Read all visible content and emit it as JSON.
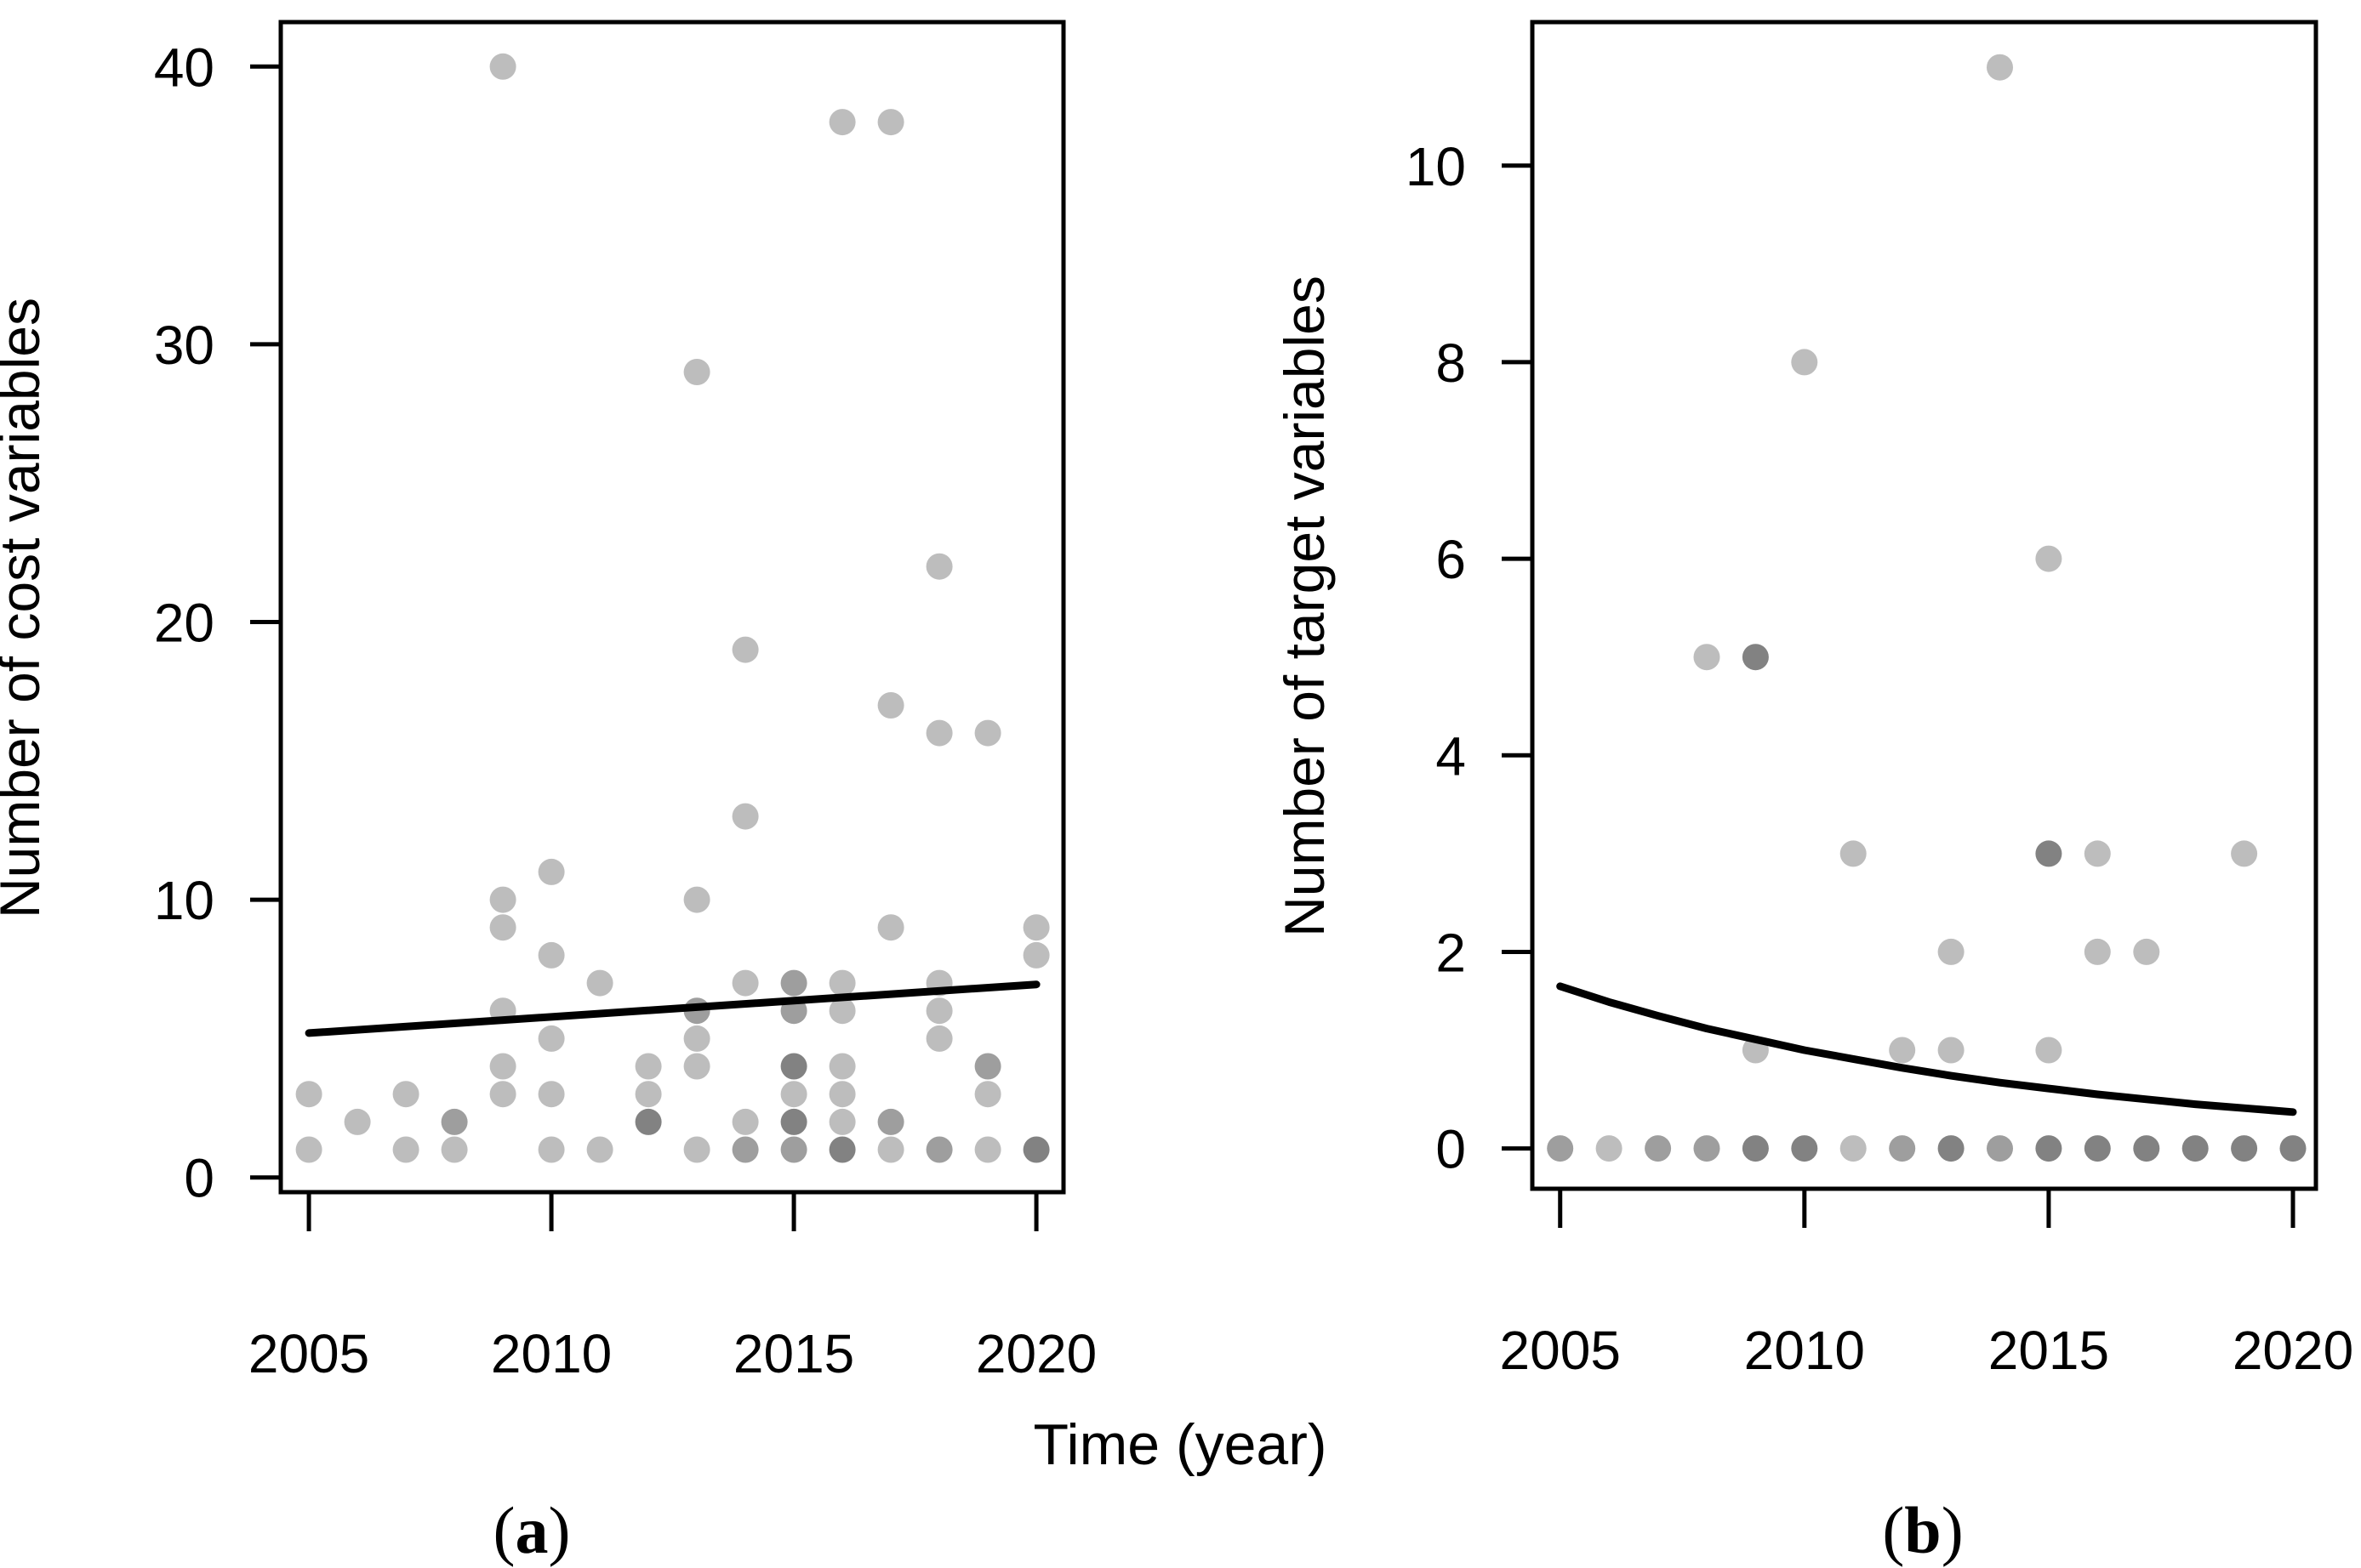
{
  "figure": {
    "xlabel": "Time (year)",
    "captions": [
      "a",
      "b"
    ],
    "background_color": "#ffffff",
    "axis_color": "#000000",
    "trend_color": "#000000",
    "shade_colors": {
      "L": "#bdbdbd",
      "M": "#9e9e9e",
      "D": "#828282"
    }
  },
  "chart_data": [
    {
      "type": "scatter",
      "panel": "a",
      "ylabel": "Number of cost variables",
      "xlabel": "Time (year)",
      "xticks": [
        2005,
        2010,
        2015,
        2020
      ],
      "yticks": [
        0,
        10,
        20,
        30,
        40
      ],
      "xlim": [
        2004.42,
        2020.56
      ],
      "ylim": [
        -0.53,
        41.6
      ],
      "grid": false,
      "legend": "none",
      "points": [
        [
          2005,
          3,
          "L"
        ],
        [
          2005,
          1,
          "L"
        ],
        [
          2006,
          2,
          "L"
        ],
        [
          2007,
          3,
          "L"
        ],
        [
          2007,
          1,
          "L"
        ],
        [
          2008,
          2,
          "M"
        ],
        [
          2008,
          1,
          "L"
        ],
        [
          2009,
          40,
          "L"
        ],
        [
          2009,
          10,
          "L"
        ],
        [
          2009,
          9,
          "L"
        ],
        [
          2009,
          6,
          "L"
        ],
        [
          2009,
          4,
          "L"
        ],
        [
          2009,
          3,
          "L"
        ],
        [
          2010,
          11,
          "L"
        ],
        [
          2010,
          8,
          "L"
        ],
        [
          2010,
          5,
          "L"
        ],
        [
          2010,
          3,
          "L"
        ],
        [
          2010,
          1,
          "L"
        ],
        [
          2011,
          7,
          "L"
        ],
        [
          2011,
          1,
          "L"
        ],
        [
          2012,
          4,
          "L"
        ],
        [
          2012,
          3,
          "L"
        ],
        [
          2012,
          2,
          "D"
        ],
        [
          2013,
          29,
          "L"
        ],
        [
          2013,
          10,
          "L"
        ],
        [
          2013,
          6,
          "M"
        ],
        [
          2013,
          5,
          "L"
        ],
        [
          2013,
          4,
          "L"
        ],
        [
          2013,
          1,
          "L"
        ],
        [
          2014,
          19,
          "L"
        ],
        [
          2014,
          13,
          "L"
        ],
        [
          2014,
          7,
          "L"
        ],
        [
          2014,
          2,
          "L"
        ],
        [
          2014,
          1,
          "M"
        ],
        [
          2015,
          7,
          "M"
        ],
        [
          2015,
          6,
          "M"
        ],
        [
          2015,
          4,
          "D"
        ],
        [
          2015,
          3,
          "L"
        ],
        [
          2015,
          2,
          "D"
        ],
        [
          2015,
          1,
          "M"
        ],
        [
          2016,
          38,
          "L"
        ],
        [
          2016,
          7,
          "L"
        ],
        [
          2016,
          6,
          "L"
        ],
        [
          2016,
          4,
          "L"
        ],
        [
          2016,
          3,
          "L"
        ],
        [
          2016,
          2,
          "L"
        ],
        [
          2016,
          1,
          "D"
        ],
        [
          2017,
          38,
          "L"
        ],
        [
          2017,
          17,
          "L"
        ],
        [
          2017,
          9,
          "L"
        ],
        [
          2017,
          2,
          "M"
        ],
        [
          2017,
          1,
          "L"
        ],
        [
          2018,
          22,
          "L"
        ],
        [
          2018,
          16,
          "L"
        ],
        [
          2018,
          7,
          "L"
        ],
        [
          2018,
          6,
          "L"
        ],
        [
          2018,
          5,
          "L"
        ],
        [
          2018,
          1,
          "M"
        ],
        [
          2019,
          16,
          "L"
        ],
        [
          2019,
          4,
          "M"
        ],
        [
          2019,
          3,
          "L"
        ],
        [
          2019,
          1,
          "L"
        ],
        [
          2020,
          9,
          "L"
        ],
        [
          2020,
          8,
          "L"
        ],
        [
          2020,
          1,
          "D"
        ]
      ],
      "trend_line": [
        [
          2005,
          5.2
        ],
        [
          2020,
          6.95
        ]
      ]
    },
    {
      "type": "scatter",
      "panel": "b",
      "ylabel": "Number of target variables",
      "xlabel": "Time (year)",
      "xticks": [
        2005,
        2010,
        2015,
        2020
      ],
      "yticks": [
        0,
        2,
        4,
        6,
        8,
        10
      ],
      "xlim": [
        2004.43,
        2020.47
      ],
      "ylim": [
        -0.41,
        11.46
      ],
      "grid": false,
      "legend": "none",
      "points": [
        [
          2014,
          11,
          "L"
        ],
        [
          2010,
          8,
          "L"
        ],
        [
          2015,
          6,
          "L"
        ],
        [
          2008,
          5,
          "L"
        ],
        [
          2009,
          5,
          "D"
        ],
        [
          2011,
          3,
          "L"
        ],
        [
          2015,
          3,
          "D"
        ],
        [
          2016,
          3,
          "L"
        ],
        [
          2019,
          3,
          "L"
        ],
        [
          2013,
          2,
          "L"
        ],
        [
          2016,
          2,
          "L"
        ],
        [
          2017,
          2,
          "L"
        ],
        [
          2009,
          1,
          "L"
        ],
        [
          2012,
          1,
          "L"
        ],
        [
          2013,
          1,
          "L"
        ],
        [
          2015,
          1,
          "L"
        ],
        [
          2005,
          0,
          "M"
        ],
        [
          2006,
          0,
          "L"
        ],
        [
          2007,
          0,
          "M"
        ],
        [
          2008,
          0,
          "M"
        ],
        [
          2009,
          0,
          "D"
        ],
        [
          2010,
          0,
          "D"
        ],
        [
          2011,
          0,
          "L"
        ],
        [
          2012,
          0,
          "M"
        ],
        [
          2013,
          0,
          "D"
        ],
        [
          2014,
          0,
          "M"
        ],
        [
          2015,
          0,
          "D"
        ],
        [
          2016,
          0,
          "D"
        ],
        [
          2017,
          0,
          "D"
        ],
        [
          2018,
          0,
          "D"
        ],
        [
          2019,
          0,
          "D"
        ],
        [
          2020,
          0,
          "D"
        ]
      ],
      "trend_line": [
        [
          2005,
          1.65
        ],
        [
          2006,
          1.49
        ],
        [
          2007,
          1.35
        ],
        [
          2008,
          1.22
        ],
        [
          2009,
          1.11
        ],
        [
          2010,
          1.0
        ],
        [
          2011,
          0.91
        ],
        [
          2012,
          0.82
        ],
        [
          2013,
          0.74
        ],
        [
          2014,
          0.67
        ],
        [
          2015,
          0.61
        ],
        [
          2016,
          0.55
        ],
        [
          2017,
          0.5
        ],
        [
          2018,
          0.45
        ],
        [
          2019,
          0.41
        ],
        [
          2020,
          0.37
        ]
      ]
    }
  ]
}
